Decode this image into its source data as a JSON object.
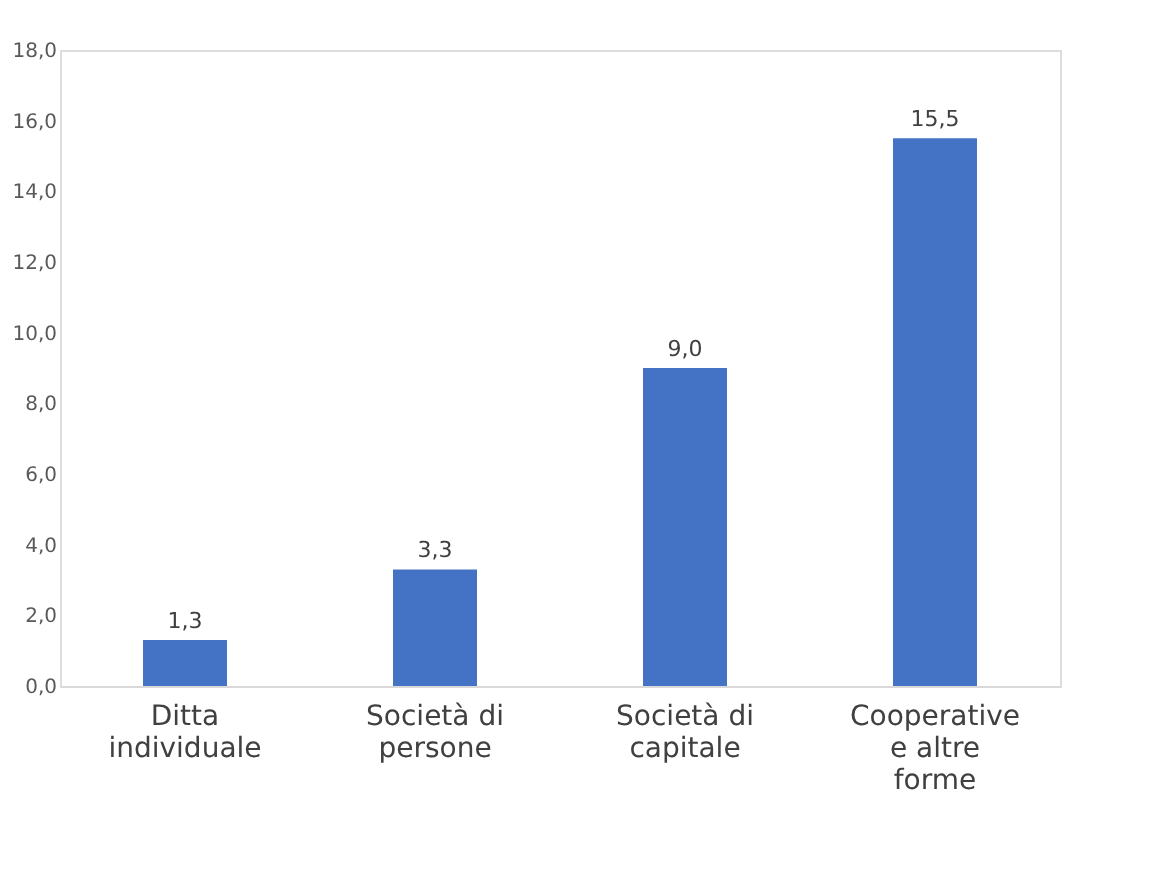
{
  "chart_data": {
    "type": "bar",
    "categories": [
      "Ditta individuale",
      "Società di persone",
      "Società di capitale",
      "Cooperative e altre forme"
    ],
    "values": [
      1.3,
      3.3,
      9.0,
      15.5
    ],
    "value_labels": [
      "1,3",
      "3,3",
      "9,0",
      "15,5"
    ],
    "color": "#4472c4",
    "ylim": [
      0,
      18
    ],
    "yticks": [
      {
        "value": 0,
        "label": "0,0"
      },
      {
        "value": 2,
        "label": "2,0"
      },
      {
        "value": 4,
        "label": "4,0"
      },
      {
        "value": 6,
        "label": "6,0"
      },
      {
        "value": 8,
        "label": "8,0"
      },
      {
        "value": 10,
        "label": "10,0"
      },
      {
        "value": 12,
        "label": "12,0"
      },
      {
        "value": 14,
        "label": "14,0"
      },
      {
        "value": 16,
        "label": "16,0"
      },
      {
        "value": 18,
        "label": "18,0"
      }
    ],
    "grid": false
  }
}
